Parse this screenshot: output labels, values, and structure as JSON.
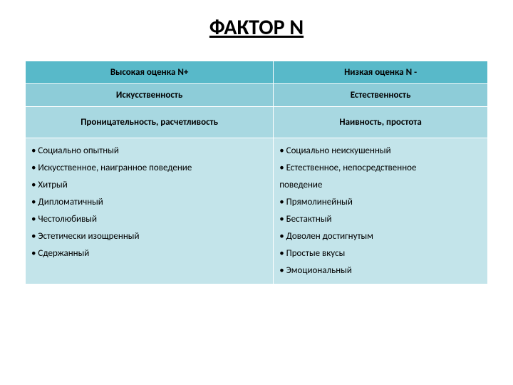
{
  "title": "ФАКТОР N",
  "header_left": "Высокая оценка N+",
  "header_right": "Низкая оценка  N -",
  "sub_left": "Искусственность",
  "sub_right": "Естественность",
  "trait_left": "Проницательность, расчетливость",
  "trait_right": "Наивность, простота",
  "left_items": [
    "Социально опытный",
    "Искусственное, наигранное поведение",
    "Хитрый",
    "Дипломатичный",
    "Честолюбивый",
    "Эстетически изощренный",
    "Сдержанный"
  ],
  "right_items": [
    "Социально неискушенный",
    "Естественное,           непосредственное",
    "поведение",
    "Прямолинейный",
    "Бестактный",
    "Доволен достигнутым",
    "Простые вкусы",
    "Эмоциональный"
  ],
  "bullet_flags_right": [
    true,
    true,
    false,
    true,
    true,
    true,
    true,
    true
  ],
  "colors": {
    "header_bg": "#58b9c9",
    "sub_bg": "#8dccd8",
    "sub2_bg": "#a8d8e1",
    "body_bg": "#c3e4ea",
    "border": "#ffffff",
    "text": "#000000"
  }
}
